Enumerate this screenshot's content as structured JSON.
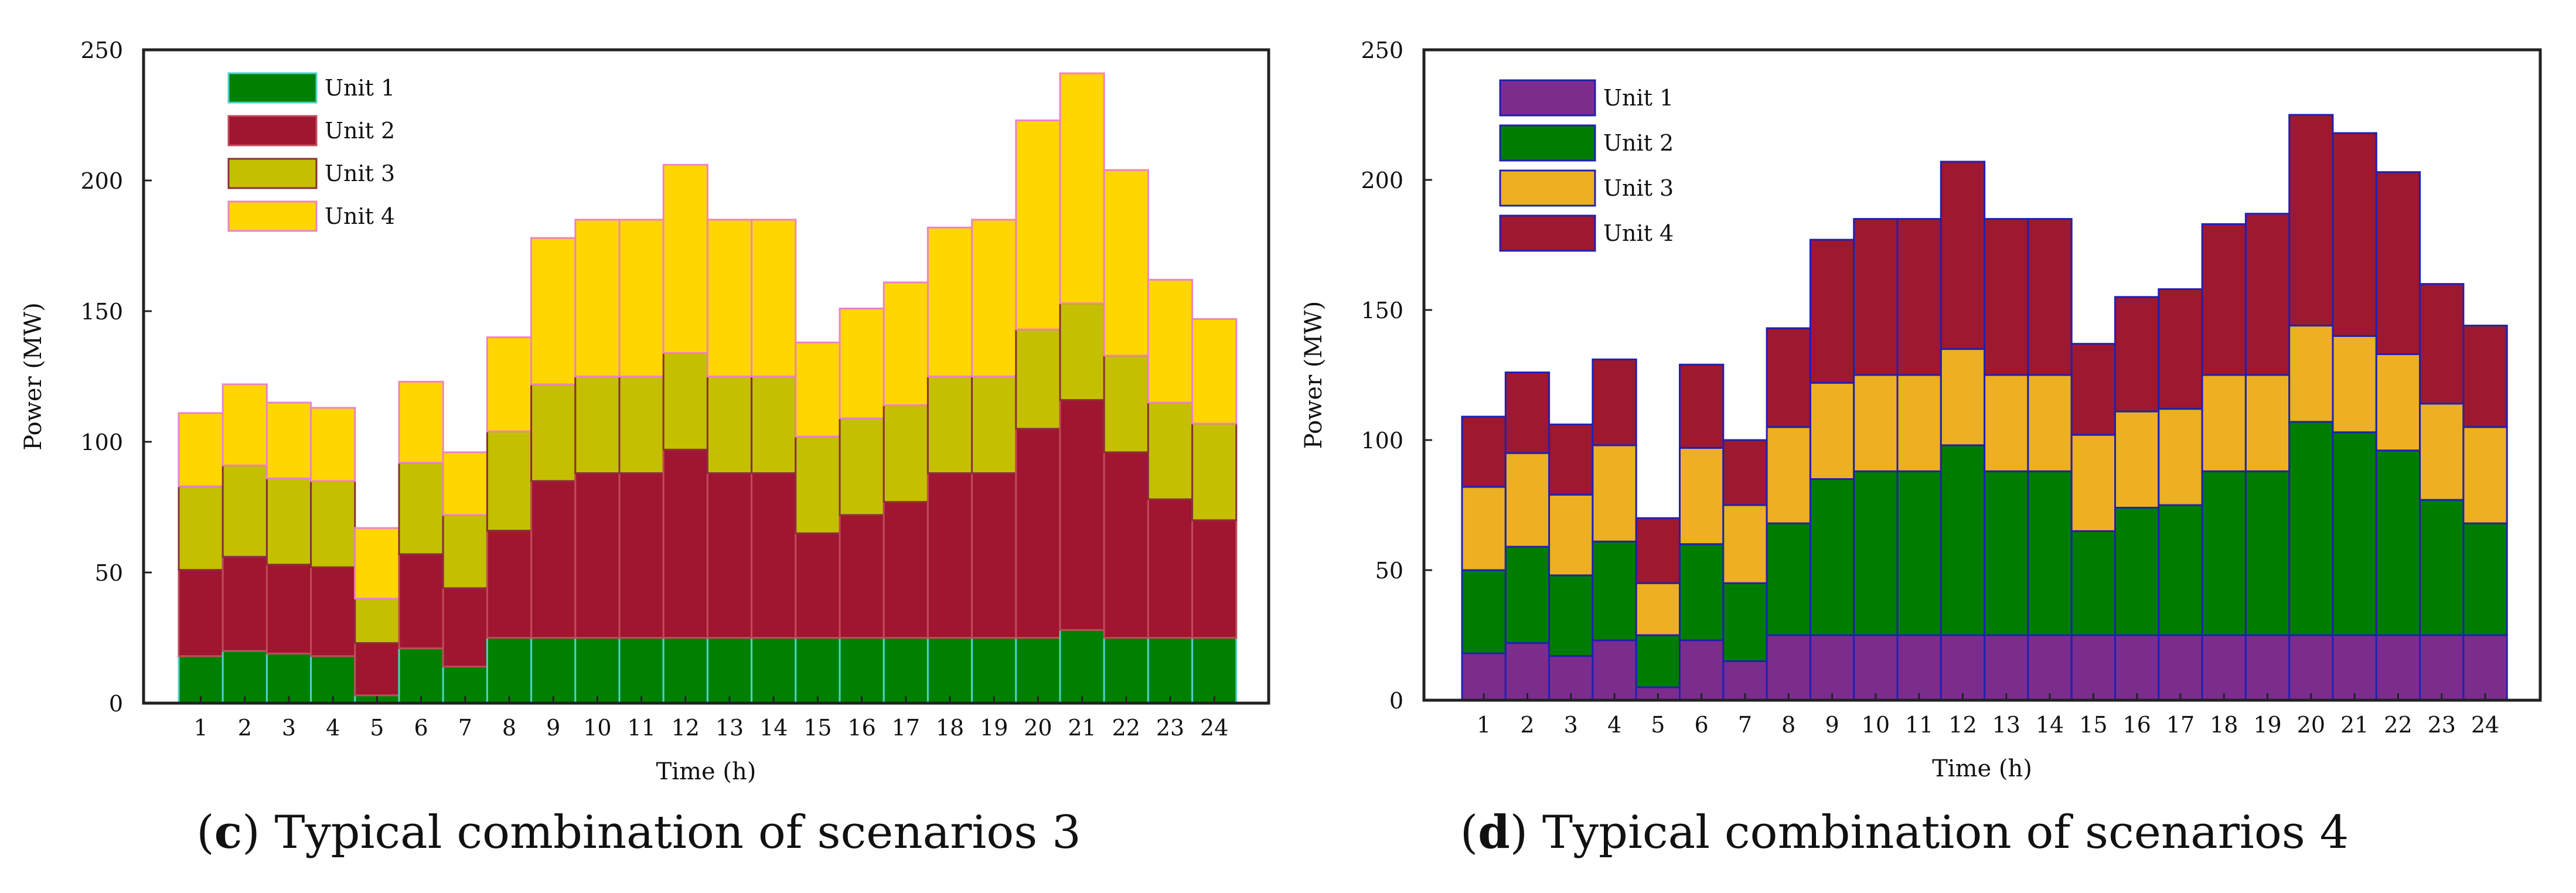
{
  "chart_data": [
    {
      "type": "bar",
      "stacked": true,
      "panel_label": "c",
      "caption": "Typical combination of scenarios 3",
      "xlabel": "Time (h)",
      "ylabel": "Power (MW)",
      "ylim": [
        0,
        250
      ],
      "yticks": [
        0,
        50,
        100,
        150,
        200,
        250
      ],
      "grid": false,
      "legend_position": "top-left",
      "categories": [
        "1",
        "2",
        "3",
        "4",
        "5",
        "6",
        "7",
        "8",
        "9",
        "10",
        "11",
        "12",
        "13",
        "14",
        "15",
        "16",
        "17",
        "18",
        "19",
        "20",
        "21",
        "22",
        "23",
        "24"
      ],
      "series": [
        {
          "name": "Unit 1",
          "color": "#008000",
          "edge": "#4dd2c8",
          "values": [
            18,
            20,
            19,
            18,
            3,
            21,
            14,
            25,
            25,
            25,
            25,
            25,
            25,
            25,
            25,
            25,
            25,
            25,
            25,
            25,
            28,
            25,
            25,
            25
          ]
        },
        {
          "name": "Unit 2",
          "color": "#a01530",
          "edge": "#c04a5a",
          "values": [
            33,
            36,
            34,
            34,
            20,
            36,
            30,
            41,
            60,
            63,
            63,
            72,
            63,
            63,
            40,
            47,
            52,
            63,
            63,
            80,
            88,
            71,
            53,
            45
          ]
        },
        {
          "name": "Unit 3",
          "color": "#c4c000",
          "edge": "#8a2e3a",
          "values": [
            32,
            35,
            33,
            33,
            17,
            35,
            28,
            38,
            37,
            37,
            37,
            37,
            37,
            37,
            37,
            37,
            37,
            37,
            37,
            38,
            37,
            37,
            37,
            37
          ]
        },
        {
          "name": "Unit 4",
          "color": "#ffd600",
          "edge": "#ee82c8",
          "values": [
            28,
            31,
            29,
            28,
            27,
            31,
            24,
            36,
            56,
            60,
            60,
            72,
            60,
            60,
            36,
            42,
            47,
            57,
            60,
            80,
            88,
            71,
            47,
            40
          ]
        }
      ]
    },
    {
      "type": "bar",
      "stacked": true,
      "panel_label": "d",
      "caption": "Typical combination of scenarios 4",
      "xlabel": "Time (h)",
      "ylabel": "Power (MW)",
      "ylim": [
        0,
        250
      ],
      "yticks": [
        0,
        50,
        100,
        150,
        200,
        250
      ],
      "grid": false,
      "legend_position": "top-left",
      "categories": [
        "1",
        "2",
        "3",
        "4",
        "5",
        "6",
        "7",
        "8",
        "9",
        "10",
        "11",
        "12",
        "13",
        "14",
        "15",
        "16",
        "17",
        "18",
        "19",
        "20",
        "21",
        "22",
        "23",
        "24"
      ],
      "series": [
        {
          "name": "Unit 1",
          "color": "#7b2d8e",
          "edge": "#2020b0",
          "values": [
            18,
            22,
            17,
            23,
            5,
            23,
            15,
            25,
            25,
            25,
            25,
            25,
            25,
            25,
            25,
            25,
            25,
            25,
            25,
            25,
            25,
            25,
            25,
            25
          ]
        },
        {
          "name": "Unit 2",
          "color": "#007d00",
          "edge": "#2020b0",
          "values": [
            32,
            37,
            31,
            38,
            20,
            37,
            30,
            43,
            60,
            63,
            63,
            73,
            63,
            63,
            40,
            49,
            50,
            63,
            63,
            82,
            78,
            71,
            52,
            43
          ]
        },
        {
          "name": "Unit 3",
          "color": "#ecb022",
          "edge": "#2020b0",
          "values": [
            32,
            36,
            31,
            37,
            20,
            37,
            30,
            37,
            37,
            37,
            37,
            37,
            37,
            37,
            37,
            37,
            37,
            37,
            37,
            37,
            37,
            37,
            37,
            37
          ]
        },
        {
          "name": "Unit 4",
          "color": "#9e1830",
          "edge": "#2020b0",
          "values": [
            27,
            31,
            27,
            33,
            25,
            32,
            25,
            38,
            55,
            60,
            60,
            72,
            60,
            60,
            35,
            44,
            46,
            58,
            62,
            81,
            78,
            70,
            46,
            39
          ]
        }
      ]
    }
  ]
}
